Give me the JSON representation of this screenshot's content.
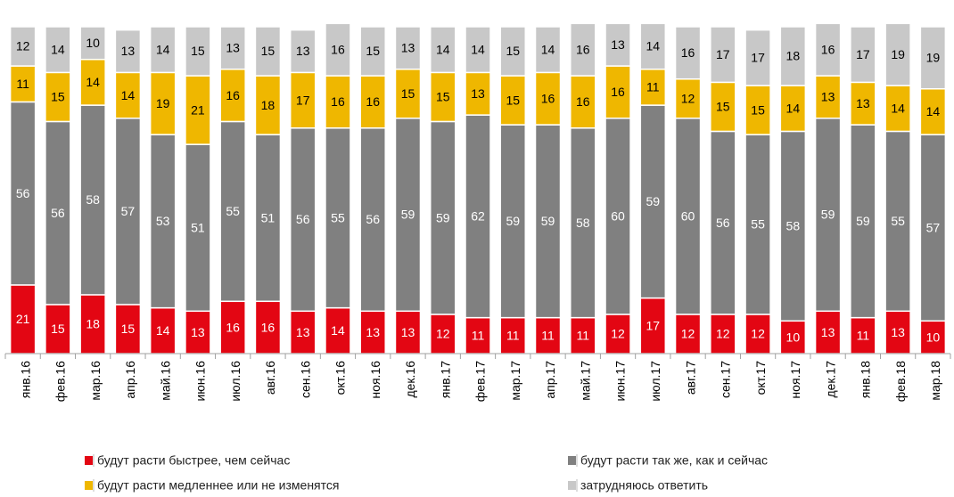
{
  "chart_data": {
    "type": "stacked_bar",
    "categories": [
      "янв.16",
      "фев.16",
      "мар.16",
      "апр.16",
      "май.16",
      "июн.16",
      "июл.16",
      "авг.16",
      "сен.16",
      "окт.16",
      "ноя.16",
      "дек.16",
      "янв.17",
      "фев.17",
      "мар.17",
      "апр.17",
      "май.17",
      "июн.17",
      "июл.17",
      "авг.17",
      "сен.17",
      "окт.17",
      "ноя.17",
      "дек.17",
      "янв.18",
      "фев.18",
      "мар.18"
    ],
    "series": [
      {
        "name": "будут расти быстрее, чем сейчас",
        "color": "#e30613",
        "label_color": "#ffffff",
        "values": [
          21,
          15,
          18,
          15,
          14,
          13,
          16,
          16,
          13,
          14,
          13,
          13,
          12,
          11,
          11,
          11,
          11,
          12,
          17,
          12,
          12,
          12,
          10,
          13,
          11,
          13,
          10
        ]
      },
      {
        "name": "будут расти так же, как и сейчас",
        "color": "#808080",
        "label_color": "#ffffff",
        "values": [
          56,
          56,
          58,
          57,
          53,
          51,
          55,
          51,
          56,
          55,
          56,
          59,
          59,
          62,
          59,
          59,
          58,
          60,
          59,
          60,
          56,
          55,
          58,
          59,
          59,
          55,
          57
        ]
      },
      {
        "name": "будут расти медленнее или не изменятся",
        "color": "#efb700",
        "label_color": "#000000",
        "values": [
          11,
          15,
          14,
          14,
          19,
          21,
          16,
          18,
          17,
          16,
          16,
          15,
          15,
          13,
          15,
          16,
          16,
          16,
          11,
          12,
          15,
          15,
          14,
          13,
          13,
          14,
          14
        ]
      },
      {
        "name": "затрудняюсь ответить",
        "color": "#c8c8c8",
        "label_color": "#000000",
        "values": [
          12,
          14,
          10,
          13,
          14,
          15,
          13,
          15,
          13,
          16,
          15,
          13,
          14,
          14,
          15,
          14,
          16,
          13,
          14,
          16,
          17,
          17,
          18,
          16,
          17,
          19,
          19
        ]
      }
    ],
    "ylim": [
      0,
      100
    ]
  }
}
